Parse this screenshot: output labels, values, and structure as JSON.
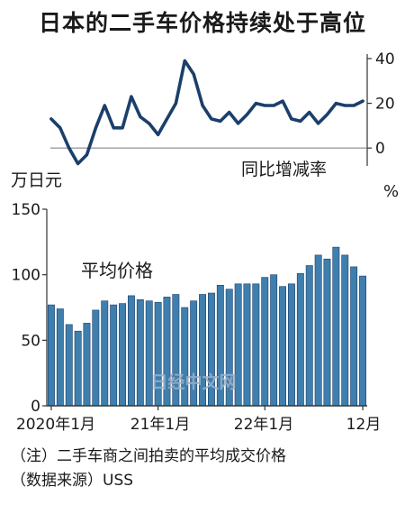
{
  "title": "日本的二手车价格持续处于高位",
  "watermark": "日经中文网",
  "notes": [
    "（注）二手车商之间拍卖的平均成交价格",
    "（数据来源）USS"
  ],
  "colors": {
    "line": "#1b3f6b",
    "bar_fill": "#3f7fae",
    "bar_stroke": "#1b3f6b",
    "axis": "#333333",
    "watermark": "#9bb1c8"
  },
  "chart_data": [
    {
      "type": "line",
      "title": "",
      "ylabel": "同比增减率",
      "yunit": "%",
      "ylim": [
        -8,
        42
      ],
      "yticks": [
        0,
        20,
        40
      ],
      "x": [
        "2020-01",
        "2020-02",
        "2020-03",
        "2020-04",
        "2020-05",
        "2020-06",
        "2020-07",
        "2020-08",
        "2020-09",
        "2020-10",
        "2020-11",
        "2020-12",
        "2021-01",
        "2021-02",
        "2021-03",
        "2021-04",
        "2021-05",
        "2021-06",
        "2021-07",
        "2021-08",
        "2021-09",
        "2021-10",
        "2021-11",
        "2021-12",
        "2022-01",
        "2022-02",
        "2022-03",
        "2022-04",
        "2022-05",
        "2022-06",
        "2022-07",
        "2022-08",
        "2022-09",
        "2022-10",
        "2022-11",
        "2022-12"
      ],
      "values": [
        13,
        9,
        0,
        -7,
        -3,
        9,
        19,
        9,
        9,
        23,
        14,
        11,
        6,
        13,
        20,
        39,
        33,
        19,
        13,
        12,
        16,
        11,
        15,
        20,
        19,
        19,
        21,
        13,
        12,
        16,
        11,
        15,
        20,
        19,
        19,
        21
      ]
    },
    {
      "type": "bar",
      "title": "平均价格",
      "ylabel": "万日元",
      "ylim": [
        0,
        150
      ],
      "yticks": [
        0,
        50,
        100,
        150
      ],
      "x": [
        "2020-01",
        "2020-02",
        "2020-03",
        "2020-04",
        "2020-05",
        "2020-06",
        "2020-07",
        "2020-08",
        "2020-09",
        "2020-10",
        "2020-11",
        "2020-12",
        "2021-01",
        "2021-02",
        "2021-03",
        "2021-04",
        "2021-05",
        "2021-06",
        "2021-07",
        "2021-08",
        "2021-09",
        "2021-10",
        "2021-11",
        "2021-12",
        "2022-01",
        "2022-02",
        "2022-03",
        "2022-04",
        "2022-05",
        "2022-06",
        "2022-07",
        "2022-08",
        "2022-09",
        "2022-10",
        "2022-11",
        "2022-12"
      ],
      "xtick_labels": [
        "2020年1月",
        "21年1月",
        "22年1月",
        "12月"
      ],
      "values": [
        77,
        74,
        62,
        57,
        63,
        73,
        80,
        77,
        78,
        84,
        81,
        80,
        79,
        83,
        85,
        75,
        80,
        85,
        86,
        92,
        89,
        93,
        93,
        93,
        98,
        100,
        91,
        93,
        101,
        107,
        115,
        112,
        121,
        115,
        106,
        99
      ]
    }
  ]
}
